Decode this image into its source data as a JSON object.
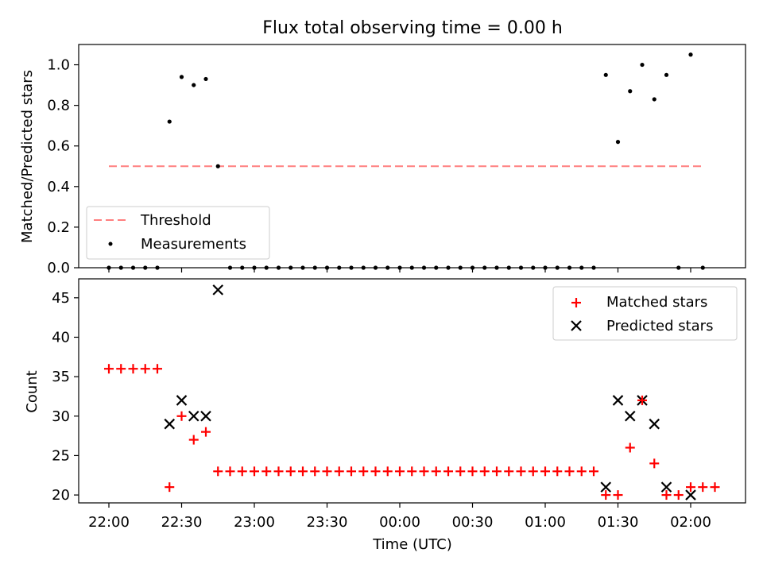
{
  "figure": {
    "title": "Flux total observing time = 0.00 h",
    "xlabel": "Time (UTC)"
  },
  "chart_data": [
    {
      "type": "scatter",
      "panel": "top",
      "ylabel": "Matched/Predicted stars",
      "ylim": [
        0,
        1.1
      ],
      "yticks": [
        0.0,
        0.2,
        0.4,
        0.6,
        0.8,
        1.0
      ],
      "xticks": [
        "22:00",
        "22:30",
        "23:00",
        "23:30",
        "00:00",
        "00:30",
        "01:00",
        "01:30",
        "02:00"
      ],
      "legend_position": "lower-left",
      "threshold": {
        "name": "Threshold",
        "value": 0.5,
        "x_start": "22:00",
        "x_end": "02:05",
        "color": "#ff7f7f"
      },
      "series": [
        {
          "name": "Measurements",
          "color": "#000000",
          "x": [
            "22:00",
            "22:05",
            "22:10",
            "22:15",
            "22:20",
            "22:25",
            "22:30",
            "22:35",
            "22:40",
            "22:45",
            "22:50",
            "22:55",
            "23:00",
            "23:05",
            "23:10",
            "23:15",
            "23:20",
            "23:25",
            "23:30",
            "23:35",
            "23:40",
            "23:45",
            "23:50",
            "23:55",
            "00:00",
            "00:05",
            "00:10",
            "00:15",
            "00:20",
            "00:25",
            "00:30",
            "00:35",
            "00:40",
            "00:45",
            "00:50",
            "00:55",
            "01:00",
            "01:05",
            "01:10",
            "01:15",
            "01:20",
            "01:25",
            "01:30",
            "01:35",
            "01:40",
            "01:45",
            "01:50",
            "01:55",
            "02:00",
            "02:05"
          ],
          "y": [
            0,
            0,
            0,
            0,
            0,
            0.72,
            0.94,
            0.9,
            0.93,
            0.5,
            0,
            0,
            0,
            0,
            0,
            0,
            0,
            0,
            0,
            0,
            0,
            0,
            0,
            0,
            0,
            0,
            0,
            0,
            0,
            0,
            0,
            0,
            0,
            0,
            0,
            0,
            0,
            0,
            0,
            0,
            0,
            0.95,
            0.62,
            0.87,
            1.0,
            0.83,
            0.95,
            0,
            1.05,
            0
          ]
        }
      ]
    },
    {
      "type": "scatter",
      "panel": "bottom",
      "ylabel": "Count",
      "ylim": [
        19,
        47.4
      ],
      "yticks": [
        20,
        25,
        30,
        35,
        40,
        45
      ],
      "xlabel": "Time (UTC)",
      "xticks": [
        "22:00",
        "22:30",
        "23:00",
        "23:30",
        "00:00",
        "00:30",
        "01:00",
        "01:30",
        "02:00"
      ],
      "legend_position": "upper-right",
      "series": [
        {
          "name": "Matched stars",
          "marker": "plus",
          "color": "#ff0000",
          "points": [
            [
              "22:00",
              36
            ],
            [
              "22:05",
              36
            ],
            [
              "22:10",
              36
            ],
            [
              "22:15",
              36
            ],
            [
              "22:20",
              36
            ],
            [
              "22:25",
              21
            ],
            [
              "22:30",
              30
            ],
            [
              "22:35",
              27
            ],
            [
              "22:40",
              28
            ],
            [
              "22:45",
              23
            ],
            [
              "22:50",
              23
            ],
            [
              "22:55",
              23
            ],
            [
              "23:00",
              23
            ],
            [
              "23:05",
              23
            ],
            [
              "23:10",
              23
            ],
            [
              "23:15",
              23
            ],
            [
              "23:20",
              23
            ],
            [
              "23:25",
              23
            ],
            [
              "23:30",
              23
            ],
            [
              "23:35",
              23
            ],
            [
              "23:40",
              23
            ],
            [
              "23:45",
              23
            ],
            [
              "23:50",
              23
            ],
            [
              "23:55",
              23
            ],
            [
              "00:00",
              23
            ],
            [
              "00:05",
              23
            ],
            [
              "00:10",
              23
            ],
            [
              "00:15",
              23
            ],
            [
              "00:20",
              23
            ],
            [
              "00:25",
              23
            ],
            [
              "00:30",
              23
            ],
            [
              "00:35",
              23
            ],
            [
              "00:40",
              23
            ],
            [
              "00:45",
              23
            ],
            [
              "00:50",
              23
            ],
            [
              "00:55",
              23
            ],
            [
              "01:00",
              23
            ],
            [
              "01:05",
              23
            ],
            [
              "01:10",
              23
            ],
            [
              "01:15",
              23
            ],
            [
              "01:20",
              23
            ],
            [
              "01:25",
              20
            ],
            [
              "01:30",
              20
            ],
            [
              "01:35",
              26
            ],
            [
              "01:40",
              32
            ],
            [
              "01:45",
              24
            ],
            [
              "01:50",
              20
            ],
            [
              "01:55",
              20
            ],
            [
              "02:00",
              21
            ],
            [
              "02:05",
              21
            ],
            [
              "02:10",
              21
            ]
          ]
        },
        {
          "name": "Predicted stars",
          "marker": "x",
          "color": "#000000",
          "points": [
            [
              "22:25",
              29
            ],
            [
              "22:30",
              32
            ],
            [
              "22:35",
              30
            ],
            [
              "22:40",
              30
            ],
            [
              "22:45",
              46
            ],
            [
              "01:25",
              21
            ],
            [
              "01:30",
              32
            ],
            [
              "01:35",
              30
            ],
            [
              "01:40",
              32
            ],
            [
              "01:45",
              29
            ],
            [
              "01:50",
              21
            ],
            [
              "02:00",
              20
            ]
          ]
        }
      ]
    }
  ]
}
